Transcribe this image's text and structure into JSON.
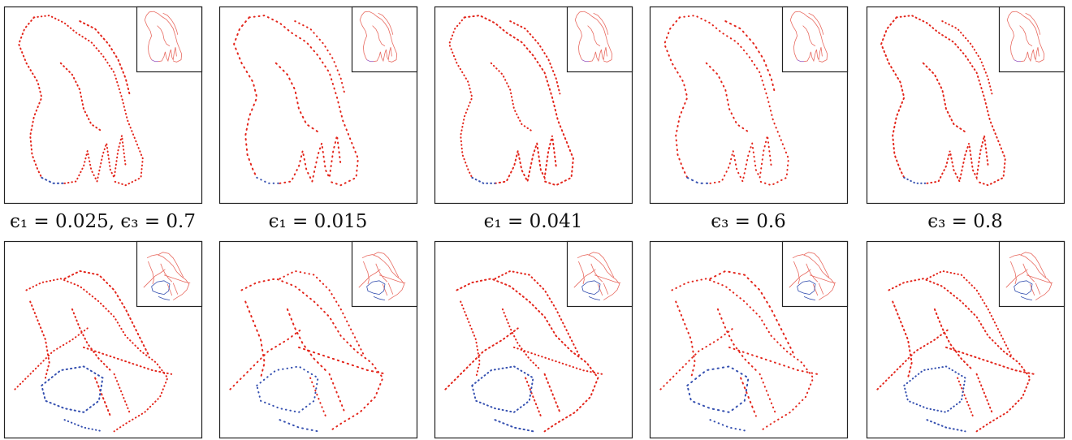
{
  "captions": [
    "ϵ₁ = 0.025, ϵ₃ = 0.7",
    "ϵ₁ = 0.015",
    "ϵ₁ = 0.041",
    "ϵ₃ = 0.6",
    "ϵ₃ = 0.8"
  ]
}
